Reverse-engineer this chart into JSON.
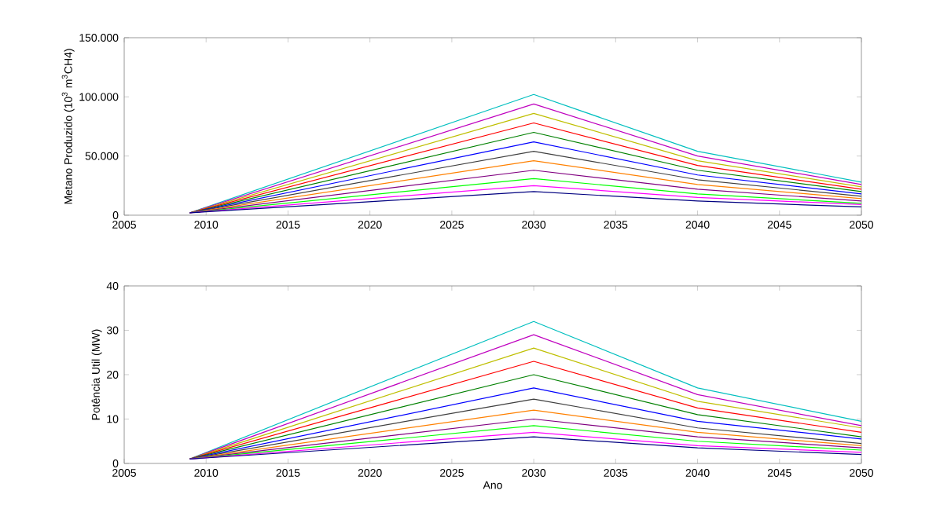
{
  "chart_data": [
    {
      "type": "line",
      "ylabel": "Metano Produzido (10$^{3}$ m$^{3}$CH4)",
      "x": [
        2009,
        2030,
        2040,
        2050
      ],
      "xlim": [
        2005,
        2050
      ],
      "xticks": [
        2005,
        2010,
        2015,
        2020,
        2025,
        2030,
        2035,
        2040,
        2045,
        2050
      ],
      "ylim": [
        0,
        150000
      ],
      "yticks": [
        0,
        {
          "value": 50000,
          "label": "50.000"
        },
        {
          "value": 100000,
          "label": "100.000"
        },
        {
          "value": 150000,
          "label": "150.000"
        }
      ],
      "grid": false,
      "marker": "none",
      "line_style": "solid",
      "series": [
        {
          "color": "#00bfbf",
          "values": [
            2000,
            102000,
            54000,
            28000
          ]
        },
        {
          "color": "#bf00bf",
          "values": [
            2000,
            94000,
            50000,
            26000
          ]
        },
        {
          "color": "#bfbf00",
          "values": [
            2000,
            86000,
            46000,
            24000
          ]
        },
        {
          "color": "#ff0000",
          "values": [
            2000,
            78000,
            42000,
            22000
          ]
        },
        {
          "color": "#008000",
          "values": [
            2000,
            70000,
            38000,
            20000
          ]
        },
        {
          "color": "#0000ff",
          "values": [
            2000,
            62000,
            34000,
            18000
          ]
        },
        {
          "color": "#404040",
          "values": [
            2000,
            54000,
            30000,
            16000
          ]
        },
        {
          "color": "#ff8000",
          "values": [
            2000,
            46000,
            26000,
            14000
          ]
        },
        {
          "color": "#800080",
          "values": [
            2000,
            38000,
            22000,
            12000
          ]
        },
        {
          "color": "#00ff00",
          "values": [
            2000,
            31000,
            18000,
            10000
          ]
        },
        {
          "color": "#ff00ff",
          "values": [
            2000,
            25000,
            15000,
            9000
          ]
        },
        {
          "color": "#000080",
          "values": [
            2000,
            20000,
            12000,
            7000
          ]
        }
      ]
    },
    {
      "type": "line",
      "xlabel": "Ano",
      "ylabel": "Potência Util (MW)",
      "x": [
        2009,
        2030,
        2040,
        2050
      ],
      "xlim": [
        2005,
        2050
      ],
      "xticks": [
        2005,
        2010,
        2015,
        2020,
        2025,
        2030,
        2035,
        2040,
        2045,
        2050
      ],
      "ylim": [
        0,
        40
      ],
      "yticks": [
        0,
        10,
        20,
        30,
        40
      ],
      "grid": false,
      "marker": "none",
      "line_style": "solid",
      "series": [
        {
          "color": "#00bfbf",
          "values": [
            1,
            32,
            17,
            9.5
          ]
        },
        {
          "color": "#bf00bf",
          "values": [
            1,
            29,
            15.5,
            8.5
          ]
        },
        {
          "color": "#bfbf00",
          "values": [
            1,
            26,
            14,
            8
          ]
        },
        {
          "color": "#ff0000",
          "values": [
            1,
            23,
            12.5,
            7
          ]
        },
        {
          "color": "#008000",
          "values": [
            1,
            20,
            11,
            6
          ]
        },
        {
          "color": "#0000ff",
          "values": [
            1,
            17,
            9.5,
            5.5
          ]
        },
        {
          "color": "#404040",
          "values": [
            1,
            14.5,
            8,
            4.5
          ]
        },
        {
          "color": "#ff8000",
          "values": [
            1,
            12,
            7,
            4
          ]
        },
        {
          "color": "#800080",
          "values": [
            1,
            10,
            6,
            3.5
          ]
        },
        {
          "color": "#00ff00",
          "values": [
            1,
            8.5,
            5,
            3
          ]
        },
        {
          "color": "#ff00ff",
          "values": [
            1,
            7,
            4,
            2.5
          ]
        },
        {
          "color": "#000080",
          "values": [
            1,
            6,
            3.5,
            2
          ]
        }
      ]
    }
  ]
}
